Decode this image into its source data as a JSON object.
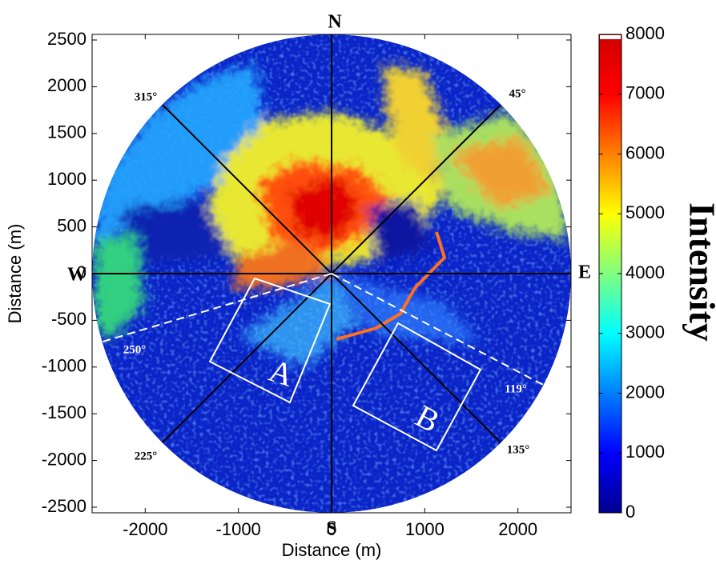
{
  "chart_data": {
    "type": "heatmap",
    "xlabel": "Distance (m)",
    "ylabel": "Distance (m)",
    "xlim": [
      -2570,
      2570
    ],
    "ylim": [
      -2560,
      2560
    ],
    "xticks": [
      -2000,
      -1000,
      0,
      1000,
      2000
    ],
    "yticks": [
      -2500,
      -2000,
      -1500,
      -1000,
      -500,
      0,
      500,
      1000,
      1500,
      2000,
      2500
    ],
    "colorbar": {
      "label": "Intensity",
      "lim": [
        0,
        8000
      ],
      "ticks": [
        0,
        1000,
        2000,
        3000,
        4000,
        5000,
        6000,
        7000,
        8000
      ]
    },
    "annotations": [
      "N",
      "S",
      "W",
      "E",
      "315°",
      "45°",
      "250°",
      "225°",
      "135°",
      "119°",
      "A",
      "B"
    ]
  }
}
